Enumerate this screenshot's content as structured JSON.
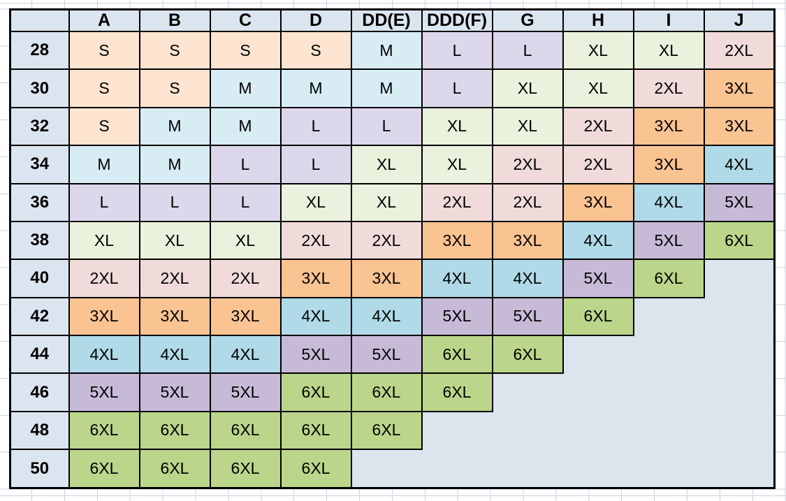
{
  "chart_data": {
    "type": "table",
    "description": "Band size by cup size to garment size lookup table",
    "corner_label": "",
    "columns": [
      "A",
      "B",
      "C",
      "D",
      "DD(E)",
      "DDD(F)",
      "G",
      "H",
      "I",
      "J"
    ],
    "rows": [
      {
        "band": "28",
        "cells": [
          "S",
          "S",
          "S",
          "S",
          "M",
          "L",
          "L",
          "XL",
          "XL",
          "2XL"
        ]
      },
      {
        "band": "30",
        "cells": [
          "S",
          "S",
          "M",
          "M",
          "M",
          "L",
          "XL",
          "XL",
          "2XL",
          "3XL"
        ]
      },
      {
        "band": "32",
        "cells": [
          "S",
          "M",
          "M",
          "L",
          "L",
          "XL",
          "XL",
          "2XL",
          "3XL",
          "3XL"
        ]
      },
      {
        "band": "34",
        "cells": [
          "M",
          "M",
          "L",
          "L",
          "XL",
          "XL",
          "2XL",
          "2XL",
          "3XL",
          "4XL"
        ]
      },
      {
        "band": "36",
        "cells": [
          "L",
          "L",
          "L",
          "XL",
          "XL",
          "2XL",
          "2XL",
          "3XL",
          "4XL",
          "5XL"
        ]
      },
      {
        "band": "38",
        "cells": [
          "XL",
          "XL",
          "XL",
          "2XL",
          "2XL",
          "3XL",
          "3XL",
          "4XL",
          "5XL",
          "6XL"
        ]
      },
      {
        "band": "40",
        "cells": [
          "2XL",
          "2XL",
          "2XL",
          "3XL",
          "3XL",
          "4XL",
          "4XL",
          "5XL",
          "6XL",
          ""
        ]
      },
      {
        "band": "42",
        "cells": [
          "3XL",
          "3XL",
          "3XL",
          "4XL",
          "4XL",
          "5XL",
          "5XL",
          "6XL",
          "",
          ""
        ]
      },
      {
        "band": "44",
        "cells": [
          "4XL",
          "4XL",
          "4XL",
          "5XL",
          "5XL",
          "6XL",
          "6XL",
          "",
          "",
          ""
        ]
      },
      {
        "band": "46",
        "cells": [
          "5XL",
          "5XL",
          "5XL",
          "6XL",
          "6XL",
          "6XL",
          "",
          "",
          "",
          ""
        ]
      },
      {
        "band": "48",
        "cells": [
          "6XL",
          "6XL",
          "6XL",
          "6XL",
          "6XL",
          "",
          "",
          "",
          "",
          ""
        ]
      },
      {
        "band": "50",
        "cells": [
          "6XL",
          "6XL",
          "6XL",
          "6XL",
          "",
          "",
          "",
          "",
          "",
          ""
        ]
      }
    ]
  },
  "size_colors": {
    "S": "#fce4d0",
    "M": "#d8ecf4",
    "L": "#ddd7eb",
    "XL": "#eaf1dc",
    "2XL": "#f0dbda",
    "3XL": "#fac392",
    "4XL": "#b0dae8",
    "5XL": "#c7bad7",
    "6XL": "#bbd68a"
  },
  "theme": {
    "header_bg": "#dbe5f0",
    "empty_bg": "#dce4ee",
    "sheet_bg": "#ffffff",
    "gridline_color": "#c8d2e0",
    "border_color": "#000000",
    "text_color": "#000000"
  }
}
